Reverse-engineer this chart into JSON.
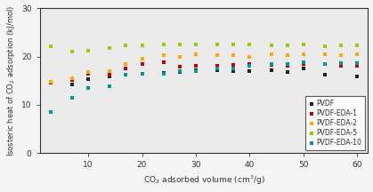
{
  "title": "",
  "xlabel": "CO$_2$ adsorbed volume (cm$^3$/g)",
  "ylabel": "Isosteric heat of CO$_2$ adsorption (kJ/mol)",
  "xlim": [
    1,
    62
  ],
  "ylim": [
    0,
    30
  ],
  "xticks": [
    10,
    20,
    30,
    40,
    50,
    60
  ],
  "yticks": [
    0,
    10,
    20,
    30
  ],
  "background": "#f0f0f0",
  "series": {
    "PVDF": {
      "color": "#222222",
      "x": [
        3,
        7,
        10,
        14,
        17,
        20,
        24,
        27,
        30,
        34,
        37,
        40,
        44,
        47,
        50,
        54,
        57,
        60
      ],
      "y": [
        14.8,
        14.3,
        15.3,
        15.9,
        16.3,
        16.5,
        16.6,
        16.7,
        17.2,
        17.2,
        17.0,
        17.0,
        17.2,
        16.8,
        17.5,
        16.3,
        18.1,
        15.8
      ]
    },
    "PVDF-EDA-1": {
      "color": "#cc0000",
      "x": [
        3,
        7,
        10,
        14,
        17,
        20,
        24,
        27,
        30,
        34,
        37,
        40,
        44,
        47,
        50,
        54,
        57,
        60
      ],
      "y": [
        14.5,
        15.2,
        16.4,
        16.3,
        17.5,
        18.5,
        18.8,
        17.9,
        18.0,
        18.0,
        18.2,
        18.5,
        18.2,
        18.0,
        18.4,
        18.5,
        18.0,
        18.0
      ]
    },
    "PVDF-EDA-2": {
      "color": "#ffaa00",
      "x": [
        3,
        7,
        10,
        14,
        17,
        20,
        24,
        27,
        30,
        34,
        37,
        40,
        44,
        47,
        50,
        54,
        57,
        60
      ],
      "y": [
        14.8,
        15.5,
        16.8,
        17.0,
        18.5,
        19.5,
        20.2,
        20.0,
        20.5,
        20.2,
        20.2,
        20.0,
        20.5,
        20.3,
        20.5,
        20.5,
        20.3,
        20.5
      ]
    },
    "PVDF-EDA-5": {
      "color": "#99cc00",
      "x": [
        3,
        7,
        10,
        14,
        17,
        20,
        24,
        27,
        30,
        34,
        37,
        40,
        44,
        47,
        50,
        54,
        57,
        60
      ],
      "y": [
        22.2,
        21.0,
        21.2,
        21.8,
        22.3,
        22.3,
        22.5,
        22.5,
        22.5,
        22.5,
        22.5,
        22.5,
        22.3,
        22.3,
        22.4,
        22.2,
        22.3,
        22.3
      ]
    },
    "PVDF-EDA-10": {
      "color": "#009999",
      "x": [
        3,
        7,
        10,
        14,
        17,
        20,
        24,
        27,
        30,
        34,
        37,
        40,
        44,
        47,
        50,
        54,
        57,
        60
      ],
      "y": [
        8.5,
        11.5,
        13.5,
        13.8,
        16.2,
        16.5,
        16.5,
        17.0,
        17.0,
        17.5,
        17.5,
        18.0,
        18.5,
        18.5,
        18.8,
        18.5,
        18.7,
        18.7
      ]
    }
  }
}
